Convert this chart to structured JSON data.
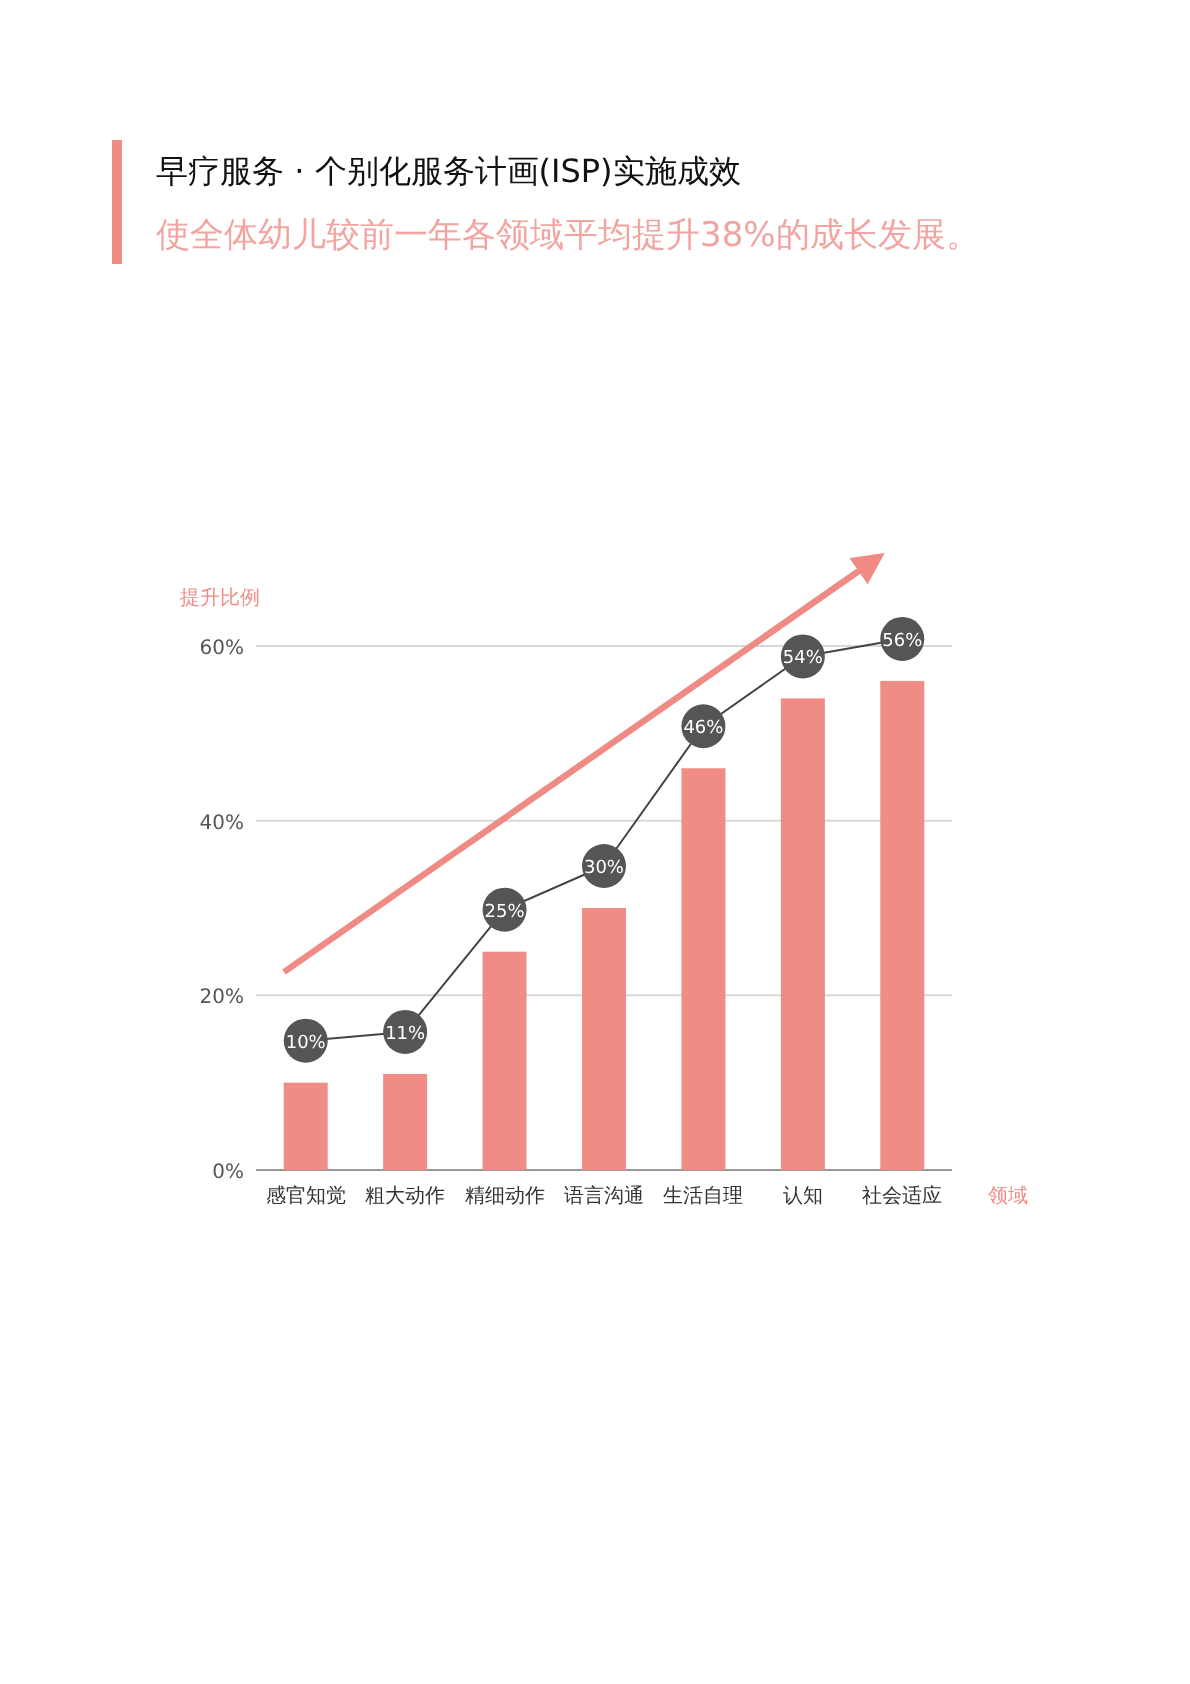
{
  "chart_data": {
    "type": "bar",
    "title": "早疗服务 · 个别化服务计画(ISP)实施成效",
    "subtitle": "使全体幼儿较前一年各领域平均提升38%的成长发展。",
    "ylabel": "提升比例",
    "xlabel": "领域",
    "categories": [
      "感官知觉",
      "粗大动作",
      "精细动作",
      "语言沟通",
      "生活自理",
      "认知",
      "社会适应"
    ],
    "series": [
      {
        "color": "#f08c86",
        "values": [
          10,
          11,
          25,
          30,
          46,
          54,
          56
        ]
      }
    ],
    "ylim": [
      0,
      60
    ],
    "yticks": [
      {
        "value": 0,
        "label": "0%"
      },
      {
        "value": 20,
        "label": "20%"
      },
      {
        "value": 40,
        "label": "40%"
      },
      {
        "value": 60,
        "label": "60%"
      }
    ],
    "grid": "y",
    "value_labels": [
      "10%",
      "11%",
      "25%",
      "30%",
      "46%",
      "54%",
      "56%"
    ]
  }
}
